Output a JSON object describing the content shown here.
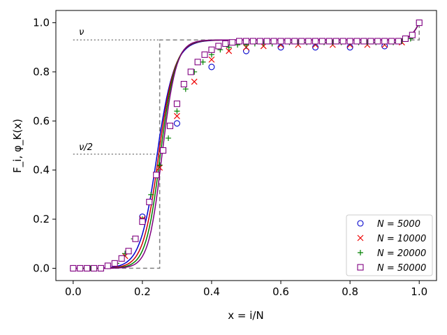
{
  "chart_data": {
    "type": "scatter",
    "title": "",
    "xlabel": "x = i/N",
    "ylabel": "F_i, φ_K(x)",
    "xlim": [
      -0.05,
      1.05
    ],
    "ylim": [
      -0.05,
      1.05
    ],
    "xticks": [
      0.0,
      0.2,
      0.4,
      0.6,
      0.8,
      1.0
    ],
    "xtick_labels": [
      "0.0",
      "0.2",
      "0.4",
      "0.6",
      "0.8",
      "1.0"
    ],
    "yticks": [
      0.0,
      0.2,
      0.4,
      0.6,
      0.8,
      1.0
    ],
    "ytick_labels": [
      "0.0",
      "0.2",
      "0.4",
      "0.6",
      "0.8",
      "1.0"
    ],
    "legend_position": "bottom-right",
    "nu": 0.93,
    "annotations": [
      {
        "text": "ν",
        "x": 0.02,
        "y": 0.93
      },
      {
        "text": "ν/2",
        "x": 0.02,
        "y": 0.465
      }
    ],
    "reference_lines": {
      "nu_dotted": {
        "x": [
          0.0,
          0.25
        ],
        "y": 0.93
      },
      "half_nu_dotted": {
        "x": [
          0.0,
          0.25
        ],
        "y": 0.465
      },
      "step_dashed": {
        "x": [
          0.0,
          0.25,
          0.25,
          1.0,
          1.0
        ],
        "y": [
          0.0,
          0.0,
          0.93,
          0.93,
          1.0
        ]
      }
    },
    "curves": [
      {
        "name": "N=5000 fit",
        "color": "#0000cc",
        "shift": -0.008,
        "width": 0.115
      },
      {
        "name": "N=10000 fit",
        "color": "#cc0000",
        "shift": -0.003,
        "width": 0.105
      },
      {
        "name": "N=20000 fit",
        "color": "#008000",
        "shift": 0.002,
        "width": 0.097
      },
      {
        "name": "N=50000 fit",
        "color": "#800080",
        "shift": 0.007,
        "width": 0.09
      }
    ],
    "series": [
      {
        "name": "N = 5000",
        "marker": "circle",
        "color": "#0000cc",
        "x": [
          0.0,
          0.1,
          0.2,
          0.3,
          0.4,
          0.5,
          0.6,
          0.7,
          0.8,
          0.9,
          1.0
        ],
        "y": [
          0.0,
          0.01,
          0.21,
          0.59,
          0.82,
          0.885,
          0.9,
          0.9,
          0.9,
          0.905,
          1.0
        ]
      },
      {
        "name": "N = 10000",
        "marker": "x",
        "color": "#ee0000",
        "x": [
          0.0,
          0.05,
          0.1,
          0.15,
          0.2,
          0.25,
          0.3,
          0.35,
          0.4,
          0.45,
          0.5,
          0.55,
          0.6,
          0.65,
          0.7,
          0.75,
          0.8,
          0.85,
          0.9,
          0.95,
          1.0
        ],
        "y": [
          0.0,
          0.0,
          0.01,
          0.05,
          0.2,
          0.41,
          0.62,
          0.76,
          0.85,
          0.885,
          0.9,
          0.905,
          0.91,
          0.91,
          0.91,
          0.91,
          0.91,
          0.91,
          0.91,
          0.92,
          1.0
        ]
      },
      {
        "name": "N = 20000",
        "marker": "plus",
        "color": "#008000",
        "x": [
          0.0,
          0.025,
          0.05,
          0.075,
          0.1,
          0.125,
          0.15,
          0.175,
          0.2,
          0.225,
          0.25,
          0.275,
          0.3,
          0.325,
          0.35,
          0.375,
          0.4,
          0.425,
          0.45,
          0.475,
          0.5,
          0.525,
          0.55,
          0.575,
          0.6,
          0.625,
          0.65,
          0.675,
          0.7,
          0.725,
          0.75,
          0.775,
          0.8,
          0.825,
          0.85,
          0.875,
          0.9,
          0.925,
          0.95,
          0.975,
          1.0
        ],
        "y": [
          0.0,
          0.0,
          0.0,
          0.0,
          0.01,
          0.02,
          0.06,
          0.12,
          0.2,
          0.3,
          0.42,
          0.53,
          0.64,
          0.73,
          0.8,
          0.84,
          0.87,
          0.89,
          0.9,
          0.91,
          0.91,
          0.915,
          0.915,
          0.915,
          0.92,
          0.92,
          0.92,
          0.92,
          0.92,
          0.92,
          0.92,
          0.92,
          0.92,
          0.92,
          0.92,
          0.92,
          0.92,
          0.92,
          0.925,
          0.935,
          1.0
        ]
      },
      {
        "name": "N = 50000",
        "marker": "square",
        "color": "#800080",
        "x": [
          0.0,
          0.02,
          0.04,
          0.06,
          0.08,
          0.1,
          0.12,
          0.14,
          0.16,
          0.18,
          0.2,
          0.22,
          0.24,
          0.26,
          0.28,
          0.3,
          0.32,
          0.34,
          0.36,
          0.38,
          0.4,
          0.42,
          0.44,
          0.46,
          0.48,
          0.5,
          0.52,
          0.54,
          0.56,
          0.58,
          0.6,
          0.62,
          0.64,
          0.66,
          0.68,
          0.7,
          0.72,
          0.74,
          0.76,
          0.78,
          0.8,
          0.82,
          0.84,
          0.86,
          0.88,
          0.9,
          0.92,
          0.94,
          0.96,
          0.98,
          1.0
        ],
        "y": [
          0.0,
          0.0,
          0.0,
          0.0,
          0.0,
          0.01,
          0.02,
          0.04,
          0.07,
          0.12,
          0.19,
          0.27,
          0.38,
          0.48,
          0.58,
          0.67,
          0.75,
          0.8,
          0.84,
          0.87,
          0.89,
          0.905,
          0.915,
          0.92,
          0.925,
          0.925,
          0.925,
          0.925,
          0.925,
          0.925,
          0.925,
          0.925,
          0.925,
          0.925,
          0.925,
          0.925,
          0.925,
          0.925,
          0.925,
          0.925,
          0.925,
          0.925,
          0.925,
          0.925,
          0.925,
          0.925,
          0.925,
          0.925,
          0.935,
          0.95,
          1.0
        ]
      }
    ]
  }
}
